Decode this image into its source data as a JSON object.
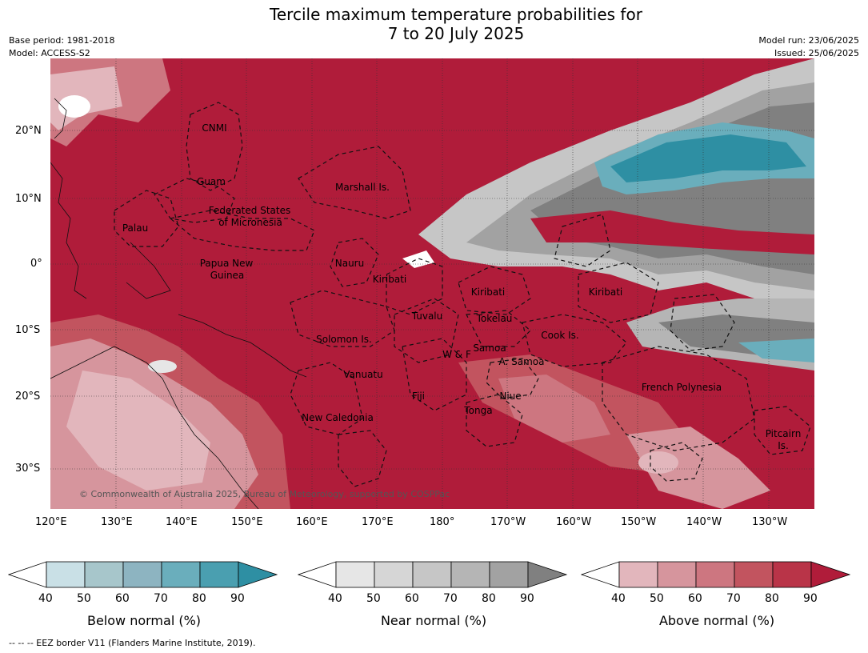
{
  "header": {
    "title_line1": "Tercile maximum temperature probabilities for",
    "title_line2": "7 to 20 July 2025",
    "base_period": "Base period: 1981-2018",
    "model": "Model: ACCESS-S2",
    "model_run": "Model run: 23/06/2025",
    "issued": "Issued: 25/06/2025"
  },
  "map": {
    "type": "probability-map",
    "lat_ticks": [
      "20°N",
      "10°N",
      "0°",
      "10°S",
      "20°S",
      "30°S"
    ],
    "lon_ticks": [
      "120°E",
      "130°E",
      "140°E",
      "150°E",
      "160°E",
      "170°E",
      "180°",
      "170°W",
      "160°W",
      "150°W",
      "140°W",
      "130°W"
    ],
    "regions": [
      "CNMI",
      "Guam",
      "Marshall Is.",
      "Palau",
      "Federated States",
      "of Micronesia",
      "Papua New",
      "Guinea",
      "Nauru",
      "Kiribati",
      "Kiribati",
      "Kiribati",
      "Tuvalu",
      "Tokelau",
      "Solomon Is.",
      "Cook Is.",
      "W & F",
      "Samoa",
      "A. Samoa",
      "Vanuatu",
      "Fiji",
      "Niue",
      "French Polynesia",
      "Tonga",
      "New Caledonia",
      "Pitcairn",
      "Is."
    ],
    "watermark": "© Commonwealth of Australia 2025, Bureau of Meteorology, supported by COSPPac"
  },
  "colorbars": [
    {
      "title": "Below normal (%)",
      "ticks": [
        "40",
        "50",
        "60",
        "70",
        "80",
        "90"
      ],
      "colors": [
        "#ffffff",
        "#c9e0e6",
        "#a7c6cb",
        "#8db4c1",
        "#6aaebc",
        "#4a9fb0",
        "#2e8fa3"
      ]
    },
    {
      "title": "Near normal (%)",
      "ticks": [
        "40",
        "50",
        "60",
        "70",
        "80",
        "90"
      ],
      "colors": [
        "#ffffff",
        "#e6e6e6",
        "#d6d6d6",
        "#c6c6c6",
        "#b5b5b5",
        "#a2a2a2",
        "#808080"
      ]
    },
    {
      "title": "Above normal (%)",
      "ticks": [
        "40",
        "50",
        "60",
        "70",
        "80",
        "90"
      ],
      "colors": [
        "#ffffff",
        "#e2b6bc",
        "#d6959d",
        "#cd7680",
        "#c2545f",
        "#b93448",
        "#b01c3a"
      ]
    }
  ],
  "footer": "--  --  -- EEZ border V11 (Flanders Marine Institute, 2019)."
}
